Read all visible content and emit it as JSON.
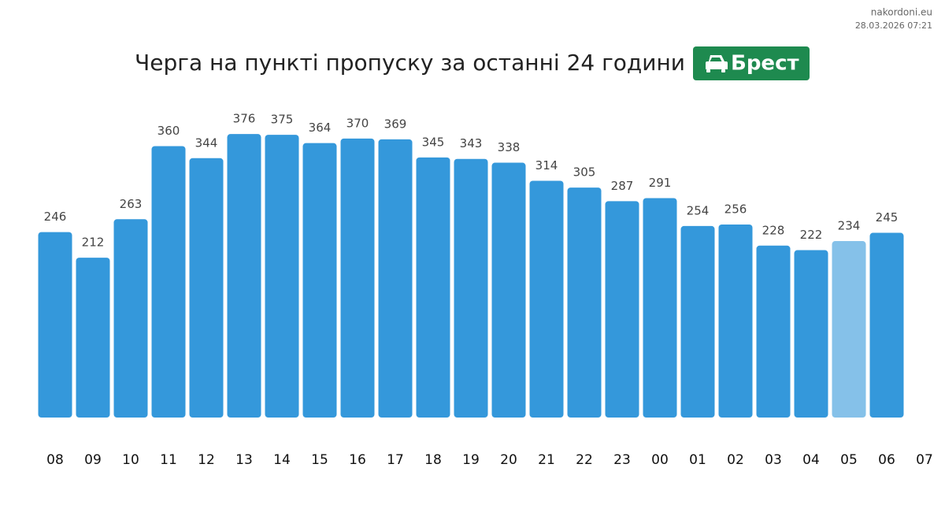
{
  "source": "nakordoni.eu",
  "timestamp": "28.03.2026 07:21",
  "chart_data": {
    "type": "bar",
    "title": "Черга на пункті пропуску за останні 24 години",
    "badge": "Брест",
    "categories": [
      "08",
      "09",
      "10",
      "11",
      "12",
      "13",
      "14",
      "15",
      "16",
      "17",
      "18",
      "19",
      "20",
      "21",
      "22",
      "23",
      "00",
      "01",
      "02",
      "03",
      "04",
      "05",
      "06",
      "07"
    ],
    "values": [
      246,
      212,
      263,
      360,
      344,
      376,
      375,
      364,
      370,
      369,
      345,
      343,
      338,
      314,
      305,
      287,
      291,
      254,
      256,
      228,
      222,
      234,
      245,
      null
    ],
    "colors": [
      "#3498db",
      "#3498db",
      "#3498db",
      "#3498db",
      "#3498db",
      "#3498db",
      "#3498db",
      "#3498db",
      "#3498db",
      "#3498db",
      "#3498db",
      "#3498db",
      "#3498db",
      "#3498db",
      "#3498db",
      "#3498db",
      "#3498db",
      "#3498db",
      "#3498db",
      "#3498db",
      "#3498db",
      "#85c1e9",
      "#3498db",
      "#3498db"
    ],
    "badge_color": "#1e8a4f"
  }
}
